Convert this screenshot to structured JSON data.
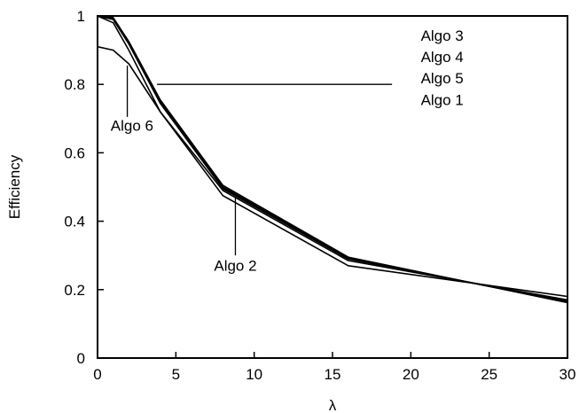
{
  "chart_data": {
    "type": "line",
    "xlabel": "λ",
    "ylabel": "Efficiency",
    "xlim": [
      0,
      30
    ],
    "ylim": [
      0,
      1
    ],
    "xticks": [
      0,
      5,
      10,
      15,
      20,
      25,
      30
    ],
    "yticks": [
      0,
      0.2,
      0.4,
      0.6,
      0.8,
      1
    ],
    "xtick_labels": [
      "0",
      "5",
      "10",
      "15",
      "20",
      "25",
      "30"
    ],
    "ytick_labels": [
      "0",
      "0.2",
      "0.4",
      "0.6",
      "0.8",
      "1"
    ],
    "grid": false,
    "legend": "none",
    "series": [
      {
        "name": "Algo 1",
        "x": [
          0,
          1,
          2,
          4,
          8,
          16,
          30
        ],
        "y": [
          1.0,
          0.99,
          0.92,
          0.745,
          0.495,
          0.29,
          0.165
        ]
      },
      {
        "name": "Algo 2",
        "x": [
          0,
          1,
          2,
          4,
          8,
          16,
          30
        ],
        "y": [
          1.0,
          0.98,
          0.9,
          0.72,
          0.475,
          0.27,
          0.18
        ]
      },
      {
        "name": "Algo 3",
        "x": [
          0,
          1,
          2,
          4,
          8,
          16,
          30
        ],
        "y": [
          1.0,
          0.995,
          0.925,
          0.755,
          0.505,
          0.295,
          0.162
        ]
      },
      {
        "name": "Algo 4",
        "x": [
          0,
          1,
          2,
          4,
          8,
          16,
          30
        ],
        "y": [
          1.0,
          0.993,
          0.922,
          0.75,
          0.5,
          0.292,
          0.164
        ]
      },
      {
        "name": "Algo 5",
        "x": [
          0,
          1,
          2,
          4,
          8,
          16,
          30
        ],
        "y": [
          1.0,
          0.99,
          0.918,
          0.745,
          0.497,
          0.29,
          0.166
        ]
      },
      {
        "name": "Algo 6",
        "x": [
          0,
          1,
          2,
          4,
          8,
          16,
          30
        ],
        "y": [
          0.91,
          0.9,
          0.86,
          0.72,
          0.49,
          0.285,
          0.17
        ]
      }
    ],
    "annotations": [
      {
        "text": "Algo 3",
        "x": 22,
        "y": 0.928
      },
      {
        "text": "Algo 4",
        "x": 22,
        "y": 0.865
      },
      {
        "text": "Algo 5",
        "x": 22,
        "y": 0.803
      },
      {
        "text": "Algo 1",
        "x": 22,
        "y": 0.74
      },
      {
        "text": "Algo 6",
        "x": 2.2,
        "y": 0.665
      },
      {
        "text": "Algo 2",
        "x": 8.8,
        "y": 0.255
      }
    ],
    "leader_lines": [
      {
        "label": "Algo 5",
        "from": [
          3.8,
          0.8
        ],
        "to": [
          18.8,
          0.8
        ]
      },
      {
        "label": "Algo 6",
        "from": [
          1.9,
          0.855
        ],
        "to": [
          1.9,
          0.705
        ]
      },
      {
        "label": "Algo 2",
        "from": [
          8.8,
          0.47
        ],
        "to": [
          8.8,
          0.3
        ]
      }
    ]
  }
}
